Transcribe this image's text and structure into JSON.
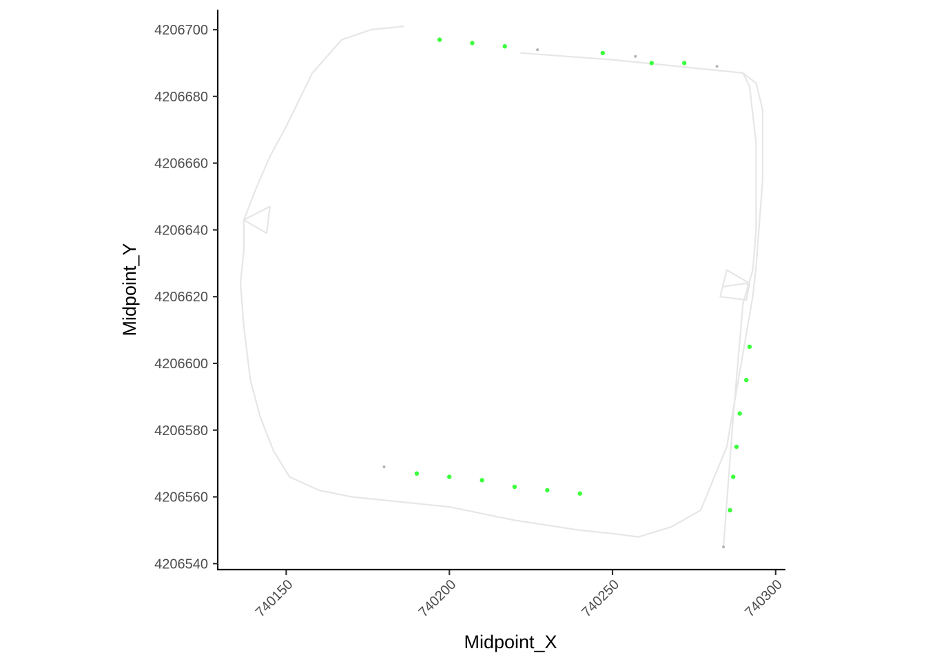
{
  "chart_data": {
    "type": "scatter",
    "title": "",
    "xlabel": "Midpoint_X",
    "ylabel": "Midpoint_Y",
    "xlim": [
      740129,
      740303
    ],
    "ylim": [
      4206538,
      4206706
    ],
    "x_ticks": [
      740150,
      740200,
      740250,
      740300
    ],
    "x_tick_labels": [
      "740150",
      "740200",
      "740250",
      "740300"
    ],
    "y_ticks": [
      4206540,
      4206560,
      4206580,
      4206600,
      4206620,
      4206640,
      4206660,
      4206680,
      4206700
    ],
    "y_tick_labels": [
      "4206540",
      "4206560",
      "4206580",
      "4206600",
      "4206620",
      "4206640",
      "4206660",
      "4206680",
      "4206700"
    ],
    "grid": false,
    "colors": {
      "track": "#e6e6e6",
      "highlight": "#3bff3b",
      "minor": "#b3b3b3"
    },
    "paths": [
      {
        "points": [
          [
            740186,
            4206701
          ],
          [
            740176,
            4206700
          ],
          [
            740167,
            4206697
          ],
          [
            740158,
            4206687
          ],
          [
            740150,
            4206671
          ],
          [
            740145,
            4206662
          ],
          [
            740141,
            4206653
          ],
          [
            740137,
            4206643
          ],
          [
            740137,
            4206634
          ],
          [
            740136,
            4206624
          ],
          [
            740137,
            4206611
          ],
          [
            740139,
            4206595
          ],
          [
            740142,
            4206584
          ],
          [
            740146,
            4206574
          ],
          [
            740151,
            4206566
          ],
          [
            740160,
            4206562
          ],
          [
            740170,
            4206560
          ],
          [
            740200,
            4206557
          ],
          [
            740220,
            4206553
          ],
          [
            740240,
            4206550
          ],
          [
            740250,
            4206549
          ],
          [
            740258,
            4206548
          ],
          [
            740268,
            4206551
          ],
          [
            740277,
            4206556
          ],
          [
            740285,
            4206575
          ],
          [
            740293,
            4206620
          ],
          [
            740294,
            4206629
          ],
          [
            740296,
            4206655
          ],
          [
            740296,
            4206676
          ],
          [
            740294,
            4206684
          ],
          [
            740290,
            4206687
          ],
          [
            740250,
            4206691
          ],
          [
            740222,
            4206693
          ]
        ]
      },
      {
        "points": [
          [
            740290,
            4206687
          ],
          [
            740292,
            4206683
          ],
          [
            740294,
            4206666
          ],
          [
            740294,
            4206640
          ],
          [
            740293,
            4206628
          ],
          [
            740290,
            4206618
          ],
          [
            740287,
            4206584
          ],
          [
            740284,
            4206545
          ]
        ]
      },
      {
        "points": [
          [
            740137,
            4206643
          ],
          [
            740145,
            4206647
          ],
          [
            740144,
            4206639
          ],
          [
            740137,
            4206643
          ]
        ]
      },
      {
        "points": [
          [
            740285,
            4206628
          ],
          [
            740292,
            4206624
          ],
          [
            740291,
            4206619
          ],
          [
            740283,
            4206620
          ],
          [
            740285,
            4206628
          ]
        ]
      },
      {
        "points": [
          [
            740284,
            4206623
          ],
          [
            740291,
            4206624
          ],
          [
            740292,
            4206623
          ]
        ]
      }
    ],
    "series": [
      {
        "color": "#3bff3b",
        "points": [
          [
            740197,
            4206697
          ],
          [
            740207,
            4206696
          ],
          [
            740217,
            4206695
          ],
          [
            740247,
            4206693
          ],
          [
            740262,
            4206690
          ],
          [
            740272,
            4206690
          ],
          [
            740292,
            4206605
          ],
          [
            740291,
            4206595
          ],
          [
            740289,
            4206585
          ],
          [
            740288,
            4206575
          ],
          [
            740287,
            4206566
          ],
          [
            740286,
            4206556
          ],
          [
            740190,
            4206567
          ],
          [
            740200,
            4206566
          ],
          [
            740210,
            4206565
          ],
          [
            740220,
            4206563
          ],
          [
            740230,
            4206562
          ],
          [
            740240,
            4206561
          ]
        ]
      },
      {
        "color": "#b3b3b3",
        "points": [
          [
            740227,
            4206694
          ],
          [
            740257,
            4206692
          ],
          [
            740282,
            4206689
          ],
          [
            740180,
            4206569
          ],
          [
            740284,
            4206545
          ]
        ]
      }
    ]
  }
}
